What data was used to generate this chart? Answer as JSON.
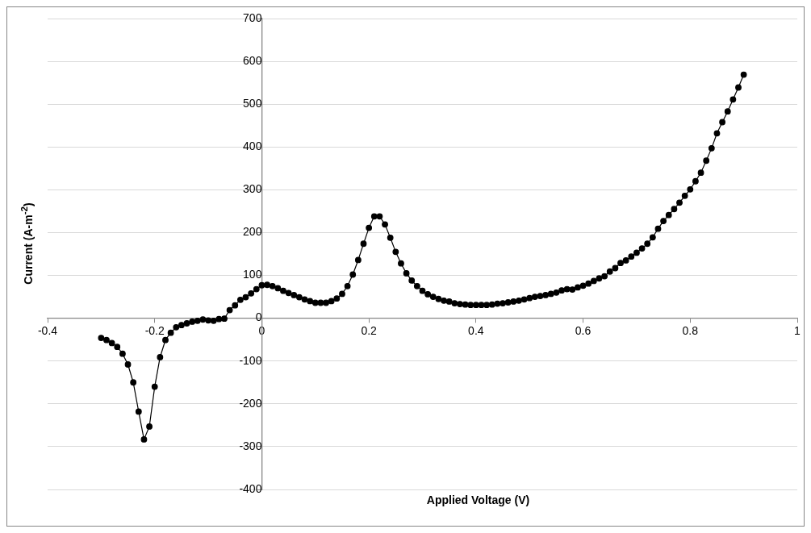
{
  "chart_data": {
    "type": "line",
    "xlabel": "Applied Voltage (V)",
    "ylabel": "Current (A-m$^{-2}$)",
    "x": [
      -0.3,
      -0.29,
      -0.28,
      -0.27,
      -0.26,
      -0.25,
      -0.24,
      -0.23,
      -0.22,
      -0.21,
      -0.2,
      -0.19,
      -0.18,
      -0.17,
      -0.16,
      -0.15,
      -0.14,
      -0.13,
      -0.12,
      -0.11,
      -0.1,
      -0.09,
      -0.08,
      -0.07,
      -0.06,
      -0.05,
      -0.04,
      -0.03,
      -0.02,
      -0.01,
      0,
      0.01,
      0.02,
      0.03,
      0.04,
      0.05,
      0.06,
      0.07,
      0.08,
      0.09,
      0.1,
      0.11,
      0.12,
      0.13,
      0.14,
      0.15,
      0.16,
      0.17,
      0.18,
      0.19,
      0.2,
      0.21,
      0.22,
      0.23,
      0.24,
      0.25,
      0.26,
      0.27,
      0.28,
      0.29,
      0.3,
      0.31,
      0.32,
      0.33,
      0.34,
      0.35,
      0.36,
      0.37,
      0.38,
      0.39,
      0.4,
      0.41,
      0.42,
      0.43,
      0.44,
      0.45,
      0.46,
      0.47,
      0.48,
      0.49,
      0.5,
      0.51,
      0.52,
      0.53,
      0.54,
      0.55,
      0.56,
      0.57,
      0.58,
      0.59,
      0.6,
      0.61,
      0.62,
      0.63,
      0.64,
      0.65,
      0.66,
      0.67,
      0.68,
      0.69,
      0.7,
      0.71,
      0.72,
      0.73,
      0.74,
      0.75,
      0.76,
      0.77,
      0.78,
      0.79,
      0.8,
      0.81,
      0.82,
      0.83,
      0.84,
      0.85,
      0.86,
      0.87,
      0.88,
      0.89,
      0.9
    ],
    "series": [
      {
        "color": "#000000",
        "values": [
          -46,
          -51,
          -58,
          -67,
          -83,
          -108,
          -150,
          -218,
          -283,
          -253,
          -160,
          -91,
          -51,
          -34,
          -21,
          -16,
          -12,
          -8,
          -6,
          -3,
          -5,
          -6,
          -2,
          -1,
          19,
          30,
          43,
          49,
          58,
          68,
          77,
          78,
          75,
          70,
          64,
          59,
          54,
          49,
          44,
          40,
          36,
          36,
          36,
          40,
          46,
          57,
          75,
          102,
          136,
          174,
          211,
          238,
          238,
          219,
          188,
          155,
          128,
          105,
          88,
          75,
          64,
          56,
          50,
          45,
          41,
          39,
          35,
          33,
          32,
          31,
          31,
          31,
          31,
          32,
          34,
          35,
          37,
          39,
          41,
          44,
          47,
          50,
          52,
          54,
          57,
          60,
          65,
          68,
          67,
          72,
          76,
          81,
          87,
          93,
          98,
          109,
          117,
          129,
          135,
          144,
          153,
          163,
          174,
          189,
          209,
          227,
          241,
          255,
          270,
          286,
          301,
          320,
          340,
          368,
          397,
          432,
          458,
          483,
          511,
          539,
          569
        ]
      }
    ],
    "xlim": [
      -0.4,
      1
    ],
    "xticks": [
      -0.4,
      -0.2,
      0,
      0.2,
      0.4,
      0.6,
      0.8,
      1
    ],
    "ylim": [
      -400,
      700
    ],
    "yticks": [
      -400,
      -300,
      -200,
      -100,
      0,
      100,
      200,
      300,
      400,
      500,
      600,
      700
    ],
    "grid": "y",
    "marker": "circle",
    "line_style": "solid",
    "legend": false
  }
}
